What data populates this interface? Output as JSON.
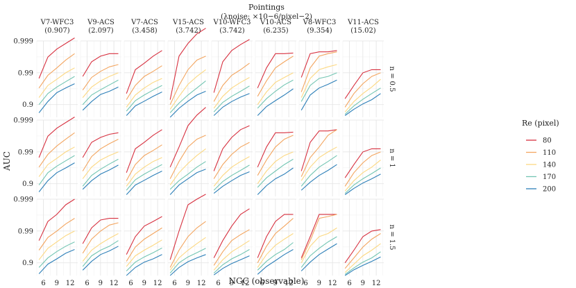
{
  "chart_data": {
    "type": "line",
    "title": "Pointings",
    "subtitle": "(λnoise: ×10−6/pixel−2)",
    "xlabel": "NGC (observable)",
    "ylabel": "AUC",
    "x": [
      5,
      7,
      9,
      11,
      13
    ],
    "x_ticks": [
      "6",
      "9",
      "12"
    ],
    "y_ticks": [
      "0.9",
      "0.99",
      "0.999"
    ],
    "ylim": [
      0.75,
      0.9995
    ],
    "legend": {
      "title": "Re (pixel)",
      "placement": "right",
      "entries": [
        "80",
        "110",
        "140",
        "170",
        "200"
      ]
    },
    "colors": [
      "#d7303f",
      "#f3a55f",
      "#fcd882",
      "#72c5b2",
      "#2c7fb8"
    ],
    "columns": [
      {
        "name": "V7-WFC3",
        "noise": "(0.907)"
      },
      {
        "name": "V9-ACS",
        "noise": "(2.097)"
      },
      {
        "name": "V7-ACS",
        "noise": "(3.458)"
      },
      {
        "name": "V15-ACS",
        "noise": "(3.742)"
      },
      {
        "name": "V10-WFC3",
        "noise": "(3.742)"
      },
      {
        "name": "V10-ACS",
        "noise": "(6.235)"
      },
      {
        "name": "V8-WFC3",
        "noise": "(9.354)"
      },
      {
        "name": "V11-ACS",
        "noise": "(15.02)"
      }
    ],
    "rows": [
      {
        "label": "n = 0.5"
      },
      {
        "label": "n = 1"
      },
      {
        "label": "n = 1.5"
      }
    ],
    "panels": [
      [
        {
          "series": [
            [
              0.985,
              0.9968,
              0.9982,
              0.9988,
              0.9992
            ],
            [
              0.97,
              0.988,
              0.993,
              0.996,
              0.9975
            ],
            [
              0.94,
              0.975,
              0.984,
              0.99,
              0.993
            ],
            [
              0.9,
              0.955,
              0.972,
              0.981,
              0.987
            ],
            [
              0.82,
              0.92,
              0.958,
              0.97,
              0.978
            ]
          ]
        },
        {
          "series": [
            [
              0.987,
              0.9955,
              0.997,
              0.9975,
              0.9975
            ],
            [
              0.965,
              0.986,
              0.991,
              0.9935,
              0.9945
            ],
            [
              0.94,
              0.972,
              0.982,
              0.987,
              0.99
            ],
            [
              0.9,
              0.95,
              0.966,
              0.976,
              0.983
            ],
            [
              0.85,
              0.92,
              0.952,
              0.962,
              0.972
            ]
          ]
        },
        {
          "series": [
            [
              0.955,
              0.992,
              0.995,
              0.997,
              0.998
            ],
            [
              0.93,
              0.975,
              0.987,
              0.991,
              0.994
            ],
            [
              0.88,
              0.95,
              0.97,
              0.98,
              0.985
            ],
            [
              0.84,
              0.925,
              0.95,
              0.965,
              0.975
            ],
            [
              0.78,
              0.89,
              0.922,
              0.945,
              0.96
            ]
          ]
        },
        {
          "series": [
            [
              0.93,
              0.997,
              0.9988,
              0.9994,
              0.9996
            ],
            [
              0.9,
              0.975,
              0.992,
              0.996,
              0.997
            ],
            [
              0.86,
              0.945,
              0.977,
              0.987,
              0.992
            ],
            [
              0.82,
              0.91,
              0.95,
              0.97,
              0.982
            ],
            [
              0.75,
              0.87,
              0.922,
              0.95,
              0.962
            ]
          ]
        },
        {
          "series": [
            [
              0.958,
              0.9955,
              0.998,
              0.9987,
              0.9991
            ],
            [
              0.92,
              0.975,
              0.988,
              0.992,
              0.995
            ],
            [
              0.87,
              0.945,
              0.97,
              0.98,
              0.986
            ],
            [
              0.83,
              0.915,
              0.945,
              0.962,
              0.974
            ],
            [
              0.78,
              0.88,
              0.92,
              0.942,
              0.955
            ]
          ]
        },
        {
          "series": [
            [
              0.97,
              0.993,
              0.9975,
              0.9975,
              0.9976
            ],
            [
              0.945,
              0.982,
              0.993,
              0.9955,
              0.997
            ],
            [
              0.9,
              0.96,
              0.98,
              0.986,
              0.99
            ],
            [
              0.87,
              0.935,
              0.962,
              0.976,
              0.983
            ],
            [
              0.78,
              0.885,
              0.925,
              0.95,
              0.968
            ]
          ]
        },
        {
          "series": [
            [
              0.986,
              0.9975,
              0.9978,
              0.9978,
              0.998
            ],
            [
              0.96,
              0.993,
              0.997,
              0.9975,
              0.9978
            ],
            [
              0.94,
              0.985,
              0.992,
              0.9935,
              0.9945
            ],
            [
              0.92,
              0.975,
              0.985,
              0.987,
              0.99
            ],
            [
              0.85,
              0.95,
              0.97,
              0.977,
              0.983
            ]
          ]
        },
        {
          "series": [
            [
              0.935,
              0.975,
              0.99,
              0.992,
              0.992
            ],
            [
              0.88,
              0.955,
              0.978,
              0.987,
              0.99
            ],
            [
              0.83,
              0.92,
              0.955,
              0.972,
              0.984
            ],
            [
              0.8,
              0.89,
              0.932,
              0.955,
              0.97
            ],
            [
              0.78,
              0.86,
              0.905,
              0.93,
              0.955
            ]
          ]
        }
      ],
      [
        {
          "series": [
            [
              0.985,
              0.9968,
              0.9982,
              0.9988,
              0.9992
            ],
            [
              0.97,
              0.988,
              0.9935,
              0.996,
              0.9975
            ],
            [
              0.94,
              0.975,
              0.984,
              0.99,
              0.993
            ],
            [
              0.89,
              0.955,
              0.972,
              0.981,
              0.987
            ],
            [
              0.82,
              0.92,
              0.955,
              0.968,
              0.978
            ]
          ]
        },
        {
          "series": [
            [
              0.985,
              0.995,
              0.9965,
              0.9972,
              0.9975
            ],
            [
              0.96,
              0.986,
              0.992,
              0.9945,
              0.996
            ],
            [
              0.93,
              0.97,
              0.982,
              0.987,
              0.99
            ],
            [
              0.88,
              0.945,
              0.965,
              0.976,
              0.983
            ],
            [
              0.85,
              0.92,
              0.95,
              0.963,
              0.974
            ]
          ]
        },
        {
          "series": [
            [
              0.955,
              0.992,
              0.995,
              0.997,
              0.998
            ],
            [
              0.92,
              0.975,
              0.987,
              0.991,
              0.994
            ],
            [
              0.88,
              0.95,
              0.97,
              0.98,
              0.985
            ],
            [
              0.84,
              0.925,
              0.95,
              0.965,
              0.975
            ],
            [
              0.78,
              0.89,
              0.922,
              0.945,
              0.96
            ]
          ]
        },
        {
          "series": [
            [
              0.97,
              0.993,
              0.9985,
              0.9993,
              0.9996
            ],
            [
              0.93,
              0.98,
              0.993,
              0.996,
              0.997
            ],
            [
              0.89,
              0.955,
              0.977,
              0.987,
              0.992
            ],
            [
              0.85,
              0.92,
              0.95,
              0.97,
              0.98
            ],
            [
              0.78,
              0.89,
              0.93,
              0.955,
              0.965
            ]
          ]
        },
        {
          "series": [
            [
              0.96,
              0.992,
              0.9965,
              0.998,
              0.9985
            ],
            [
              0.93,
              0.975,
              0.988,
              0.993,
              0.995
            ],
            [
              0.88,
              0.945,
              0.97,
              0.98,
              0.986
            ],
            [
              0.84,
              0.915,
              0.945,
              0.962,
              0.974
            ],
            [
              0.8,
              0.88,
              0.92,
              0.945,
              0.958
            ]
          ]
        },
        {
          "series": [
            [
              0.97,
              0.993,
              0.9975,
              0.9975,
              0.9976
            ],
            [
              0.945,
              0.982,
              0.993,
              0.996,
              0.997
            ],
            [
              0.9,
              0.96,
              0.98,
              0.987,
              0.99
            ],
            [
              0.87,
              0.935,
              0.96,
              0.975,
              0.983
            ],
            [
              0.78,
              0.885,
              0.93,
              0.95,
              0.968
            ]
          ]
        },
        {
          "series": [
            [
              0.96,
              0.995,
              0.9978,
              0.9978,
              0.998
            ],
            [
              0.94,
              0.985,
              0.993,
              0.997,
              0.998
            ],
            [
              0.92,
              0.97,
              0.985,
              0.99,
              0.993
            ],
            [
              0.88,
              0.945,
              0.97,
              0.98,
              0.987
            ],
            [
              0.84,
              0.91,
              0.945,
              0.962,
              0.975
            ]
          ]
        },
        {
          "series": [
            [
              0.935,
              0.975,
              0.99,
              0.992,
              0.992
            ],
            [
              0.88,
              0.955,
              0.978,
              0.987,
              0.99
            ],
            [
              0.83,
              0.92,
              0.955,
              0.97,
              0.982
            ],
            [
              0.8,
              0.89,
              0.93,
              0.952,
              0.968
            ],
            [
              0.78,
              0.86,
              0.905,
              0.93,
              0.95
            ]
          ]
        }
      ],
      [
        {
          "series": [
            [
              0.98,
              0.995,
              0.997,
              0.9985,
              0.999
            ],
            [
              0.96,
              0.984,
              0.99,
              0.994,
              0.996
            ],
            [
              0.92,
              0.965,
              0.978,
              0.986,
              0.99
            ],
            [
              0.86,
              0.93,
              0.956,
              0.97,
              0.978
            ],
            [
              0.78,
              0.89,
              0.925,
              0.95,
              0.962
            ]
          ]
        },
        {
          "series": [
            [
              0.975,
              0.992,
              0.9955,
              0.996,
              0.996
            ],
            [
              0.95,
              0.982,
              0.99,
              0.9935,
              0.9945
            ],
            [
              0.91,
              0.96,
              0.975,
              0.983,
              0.988
            ],
            [
              0.87,
              0.94,
              0.96,
              0.97,
              0.98
            ],
            [
              0.83,
              0.91,
              0.945,
              0.958,
              0.97
            ]
          ]
        },
        {
          "series": [
            [
              0.945,
              0.985,
              0.993,
              0.995,
              0.9965
            ],
            [
              0.91,
              0.968,
              0.982,
              0.988,
              0.992
            ],
            [
              0.87,
              0.94,
              0.96,
              0.972,
              0.981
            ],
            [
              0.82,
              0.905,
              0.935,
              0.952,
              0.966
            ],
            [
              0.75,
              0.86,
              0.905,
              0.925,
              0.945
            ]
          ]
        },
        {
          "series": [
            [
              0.92,
              0.99,
              0.9985,
              0.999,
              0.9993
            ],
            [
              0.86,
              0.96,
              0.985,
              0.992,
              0.995
            ],
            [
              0.83,
              0.93,
              0.96,
              0.975,
              0.984
            ],
            [
              0.79,
              0.9,
              0.935,
              0.952,
              0.965
            ],
            [
              0.75,
              0.86,
              0.908,
              0.93,
              0.945
            ]
          ]
        },
        {
          "series": [
            [
              0.93,
              0.98,
              0.993,
              0.997,
              0.998
            ],
            [
              0.88,
              0.955,
              0.98,
              0.987,
              0.991
            ],
            [
              0.83,
              0.92,
              0.955,
              0.97,
              0.98
            ],
            [
              0.79,
              0.885,
              0.925,
              0.945,
              0.962
            ],
            [
              0.76,
              0.85,
              0.895,
              0.92,
              0.94
            ]
          ]
        },
        {
          "series": [
            [
              0.93,
              0.985,
              0.995,
              0.997,
              0.997
            ],
            [
              0.9,
              0.97,
              0.988,
              0.993,
              0.996
            ],
            [
              0.86,
              0.945,
              0.972,
              0.982,
              0.988
            ],
            [
              0.83,
              0.91,
              0.945,
              0.962,
              0.977
            ],
            [
              0.77,
              0.87,
              0.915,
              0.945,
              0.962
            ]
          ]
        },
        {
          "series": [
            [
              0.93,
              0.985,
              0.997,
              0.997,
              0.997
            ],
            [
              0.92,
              0.98,
              0.996,
              0.9965,
              0.997
            ],
            [
              0.9,
              0.97,
              0.985,
              0.988,
              0.992
            ],
            [
              0.86,
              0.94,
              0.965,
              0.978,
              0.985
            ],
            [
              0.82,
              0.905,
              0.945,
              0.963,
              0.975
            ]
          ]
        },
        {
          "series": [
            [
              0.9,
              0.96,
              0.985,
              0.99,
              0.991
            ],
            [
              0.85,
              0.93,
              0.968,
              0.982,
              0.988
            ],
            [
              0.8,
              0.89,
              0.94,
              0.96,
              0.975
            ],
            [
              0.77,
              0.855,
              0.905,
              0.93,
              0.955
            ],
            [
              0.75,
              0.835,
              0.88,
              0.91,
              0.935
            ]
          ]
        }
      ]
    ]
  }
}
